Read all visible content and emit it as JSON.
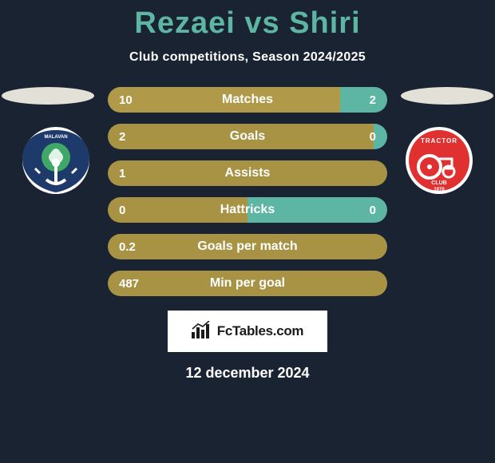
{
  "title": "Rezaei vs Shiri",
  "subtitle": "Club competitions, Season 2024/2025",
  "date": "12 december 2024",
  "logo_text": "FcTables.com",
  "colors": {
    "title": "#5db5a4",
    "bar_olive": "#a89244",
    "bar_teal": "#5db5a4",
    "bar_left_accent": "#b09a4a",
    "badge_right_bg": "#e03030",
    "badge_left_bg": "#1e3a6b",
    "background": "#1a2332",
    "ellipse": "#e3e0d8"
  },
  "stats": [
    {
      "label": "Matches",
      "left_val": "10",
      "right_val": "2",
      "left_pct": 83,
      "right_pct": 17,
      "left_color": "#b09a4a",
      "right_color": "#5db5a4"
    },
    {
      "label": "Goals",
      "left_val": "2",
      "right_val": "0",
      "left_pct": 95,
      "right_pct": 5,
      "left_color": "#a89244",
      "right_color": "#5db5a4"
    },
    {
      "label": "Assists",
      "left_val": "1",
      "right_val": "",
      "left_pct": 100,
      "right_pct": 0,
      "left_color": "#a89244",
      "right_color": "#5db5a4"
    },
    {
      "label": "Hattricks",
      "left_val": "0",
      "right_val": "0",
      "left_pct": 50,
      "right_pct": 50,
      "left_color": "#a89244",
      "right_color": "#5db5a4"
    },
    {
      "label": "Goals per match",
      "left_val": "0.2",
      "right_val": "",
      "left_pct": 100,
      "right_pct": 0,
      "left_color": "#a89244",
      "right_color": "#5db5a4"
    },
    {
      "label": "Min per goal",
      "left_val": "487",
      "right_val": "",
      "left_pct": 100,
      "right_pct": 0,
      "left_color": "#a89244",
      "right_color": "#5db5a4"
    }
  ]
}
